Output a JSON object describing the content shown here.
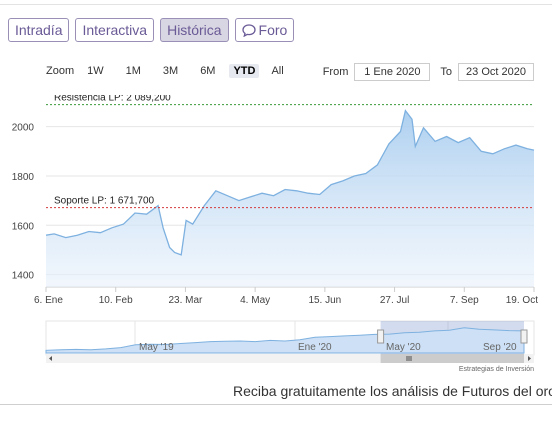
{
  "tabs": [
    {
      "label": "Intradía",
      "active": false
    },
    {
      "label": "Interactiva",
      "active": false
    },
    {
      "label": "Histórica",
      "active": true
    },
    {
      "label": "Foro",
      "active": false,
      "icon": "chat-bubble-icon"
    }
  ],
  "zoom": {
    "label": "Zoom",
    "options": [
      "1W",
      "1M",
      "3M",
      "6M",
      "YTD",
      "All"
    ],
    "selected": "YTD"
  },
  "range": {
    "from_label": "From",
    "from_value": "1 Ene 2020",
    "to_label": "To",
    "to_value": "23 Oct 2020"
  },
  "chart": {
    "resistance_label": "Resistencia LP: 2 089,200",
    "resistance_value": 2089.2,
    "support_label": "Soporte LP: 1 671,700",
    "support_value": 1671.7,
    "colors": {
      "line": "#7eb1e0",
      "fill": "#a9cdef",
      "resistance": "#3a9a3a",
      "support": "#d43a3a"
    }
  },
  "chart_data": {
    "type": "area",
    "y_ticks": [
      "1400",
      "1600",
      "1800",
      "2000"
    ],
    "ylim": [
      1350,
      2120
    ],
    "x_ticks": [
      "6. Ene",
      "10. Feb",
      "23. Mar",
      "4. May",
      "15. Jun",
      "27. Jul",
      "7. Sep",
      "19. Oct"
    ],
    "grid": true,
    "series": [
      {
        "x": [
          "2020-01-01",
          "2020-01-06",
          "2020-01-13",
          "2020-01-20",
          "2020-01-27",
          "2020-02-03",
          "2020-02-10",
          "2020-02-17",
          "2020-02-24",
          "2020-03-02",
          "2020-03-06",
          "2020-03-09",
          "2020-03-12",
          "2020-03-16",
          "2020-03-19",
          "2020-03-23",
          "2020-03-26",
          "2020-03-30",
          "2020-04-06",
          "2020-04-13",
          "2020-04-20",
          "2020-04-27",
          "2020-05-04",
          "2020-05-11",
          "2020-05-18",
          "2020-05-25",
          "2020-06-01",
          "2020-06-08",
          "2020-06-15",
          "2020-06-22",
          "2020-06-29",
          "2020-07-06",
          "2020-07-13",
          "2020-07-20",
          "2020-07-27",
          "2020-08-03",
          "2020-08-06",
          "2020-08-10",
          "2020-08-12",
          "2020-08-17",
          "2020-08-24",
          "2020-08-31",
          "2020-09-07",
          "2020-09-14",
          "2020-09-21",
          "2020-09-28",
          "2020-10-05",
          "2020-10-12",
          "2020-10-19",
          "2020-10-23"
        ],
        "y": [
          1560,
          1565,
          1550,
          1560,
          1575,
          1570,
          1590,
          1605,
          1650,
          1645,
          1665,
          1680,
          1590,
          1510,
          1490,
          1480,
          1620,
          1605,
          1680,
          1740,
          1720,
          1700,
          1715,
          1730,
          1720,
          1745,
          1740,
          1730,
          1725,
          1765,
          1780,
          1800,
          1810,
          1845,
          1930,
          1980,
          2065,
          2030,
          1920,
          1995,
          1940,
          1960,
          1935,
          1955,
          1900,
          1890,
          1910,
          1925,
          1910,
          1905
        ]
      }
    ]
  },
  "navigator": {
    "labels": [
      "May '19",
      "Ene '20",
      "May '20",
      "Sep '20"
    ],
    "values": [
      1285,
      1300,
      1315,
      1300,
      1330,
      1370,
      1460,
      1475,
      1470,
      1500,
      1530,
      1560,
      1570,
      1580,
      1560,
      1600,
      1580,
      1620,
      1700,
      1720,
      1740,
      1760,
      1790,
      1800,
      1840,
      1860,
      1900,
      1920,
      2000,
      1950,
      1930,
      1910,
      1900
    ],
    "window": [
      0.7,
      1.0
    ]
  },
  "credit": "Estrategias de Inversión",
  "footer": "Reciba gratuitamente los análisis de Futuros del oro"
}
